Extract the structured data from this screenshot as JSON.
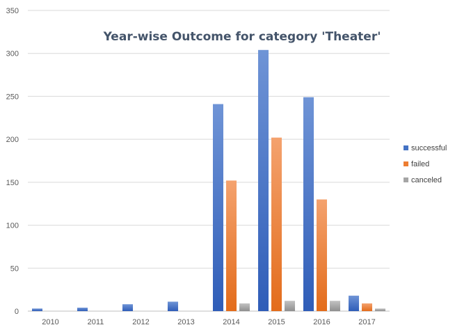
{
  "chart_data": {
    "type": "bar",
    "title": "Year-wise  Outcome for category 'Theater'",
    "categories": [
      "2010",
      "2011",
      "2012",
      "2013",
      "2014",
      "2015",
      "2016",
      "2017"
    ],
    "series": [
      {
        "name": "successful",
        "color": "#4472c4",
        "values": [
          3,
          4,
          8,
          11,
          241,
          304,
          249,
          18
        ]
      },
      {
        "name": "failed",
        "color": "#ed7d31",
        "values": [
          0,
          0,
          0,
          0,
          152,
          202,
          130,
          9
        ]
      },
      {
        "name": "canceled",
        "color": "#a5a5a5",
        "values": [
          0,
          0,
          0,
          0,
          9,
          12,
          12,
          3
        ]
      }
    ],
    "yticks": [
      "0",
      "50",
      "100",
      "150",
      "200",
      "250",
      "300",
      "350"
    ],
    "ylim": [
      0,
      350
    ],
    "grid": true,
    "legend_position": "right"
  }
}
